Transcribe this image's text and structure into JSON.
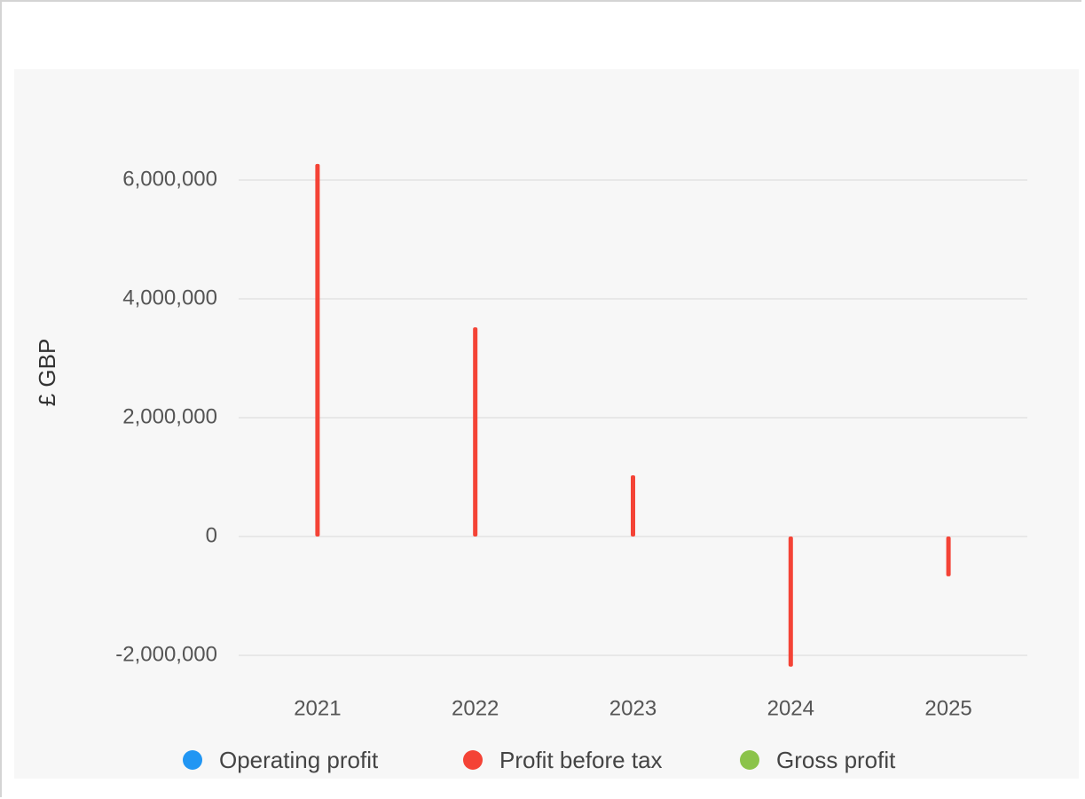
{
  "chart_data": {
    "type": "bar",
    "y_label": "£ GBP",
    "categories": [
      "2021",
      "2022",
      "2023",
      "2024",
      "2025"
    ],
    "series": [
      {
        "name": "Operating profit",
        "color": "#2196f3",
        "values": [
          null,
          null,
          null,
          null,
          null
        ]
      },
      {
        "name": "Profit before tax",
        "color": "#f44336",
        "values": [
          6270000,
          3520000,
          1030000,
          -2190000,
          -670000
        ]
      },
      {
        "name": "Gross profit",
        "color": "#8bc34a",
        "values": [
          null,
          null,
          null,
          null,
          null
        ]
      }
    ],
    "ylim": [
      -2500000,
      6500000
    ],
    "yticks": [
      {
        "value": -2000000,
        "label": "-2,000,000"
      },
      0,
      {
        "value": 2000000,
        "label": "2,000,000"
      },
      {
        "value": 4000000,
        "label": "4,000,000"
      },
      {
        "value": 6000000,
        "label": "6,000,000"
      }
    ],
    "grid": true,
    "legend": "bottom"
  }
}
